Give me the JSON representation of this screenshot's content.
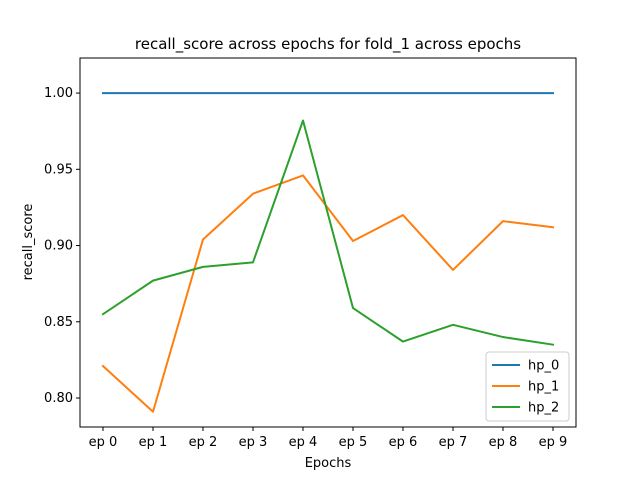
{
  "chart_data": {
    "type": "line",
    "title": "recall_score across epochs for fold_1 across epochs",
    "xlabel": "Epochs",
    "ylabel": "recall_score",
    "categories": [
      "ep 0",
      "ep 1",
      "ep 2",
      "ep 3",
      "ep 4",
      "ep 5",
      "ep 6",
      "ep 7",
      "ep 8",
      "ep 9"
    ],
    "yticks": [
      "0.80",
      "0.85",
      "0.90",
      "0.95",
      "1.00"
    ],
    "ylim": [
      0.781,
      1.023
    ],
    "grid": false,
    "legend_position": "lower-right",
    "series": [
      {
        "name": "hp_0",
        "color": "#1f77b4",
        "values": [
          1.0,
          1.0,
          1.0,
          1.0,
          1.0,
          1.0,
          1.0,
          1.0,
          1.0,
          1.0
        ]
      },
      {
        "name": "hp_1",
        "color": "#ff7f0e",
        "values": [
          0.821,
          0.791,
          0.904,
          0.934,
          0.946,
          0.903,
          0.92,
          0.884,
          0.916,
          0.912
        ]
      },
      {
        "name": "hp_2",
        "color": "#2ca02c",
        "values": [
          0.855,
          0.877,
          0.886,
          0.889,
          0.982,
          0.859,
          0.837,
          0.848,
          0.84,
          0.835
        ]
      }
    ]
  }
}
